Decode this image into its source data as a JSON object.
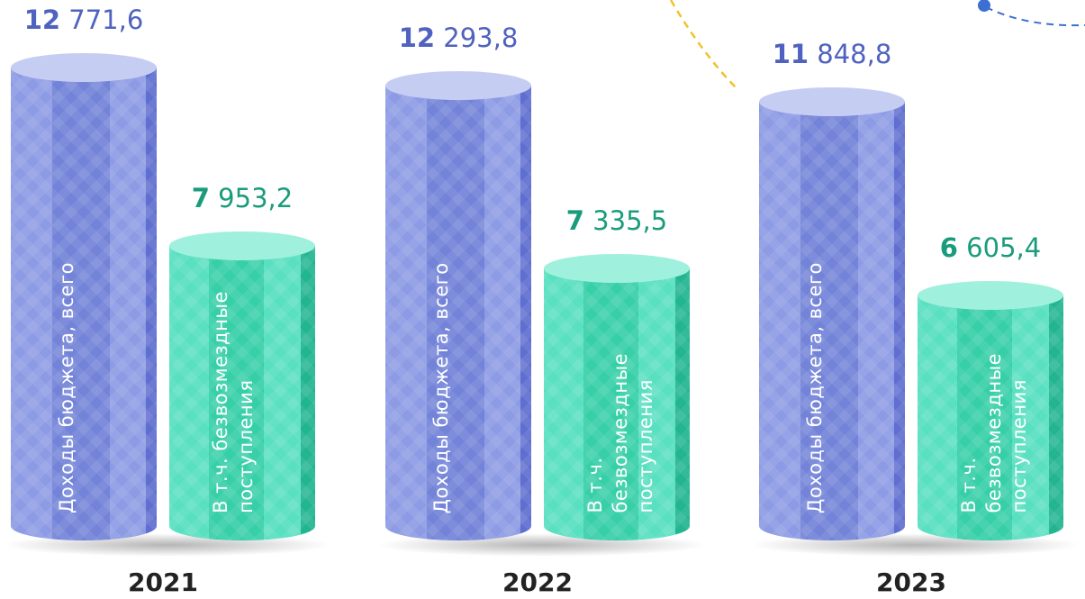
{
  "chart_data": {
    "type": "bar",
    "categories": [
      "2021",
      "2022",
      "2023"
    ],
    "series": [
      {
        "name": "Доходы бюджета, всего",
        "color": "#8392e0",
        "values": [
          12771.6,
          12293.8,
          11848.8
        ],
        "value_labels": [
          "12 771,6",
          "12 293,8",
          "11 848,8"
        ]
      },
      {
        "name": "В т.ч. безвозмездные поступления",
        "color": "#3fd9b5",
        "values": [
          7953.2,
          7335.5,
          6605.4
        ],
        "value_labels": [
          "7 953,2",
          "7 335,5",
          "6 605,4"
        ]
      }
    ]
  }
}
